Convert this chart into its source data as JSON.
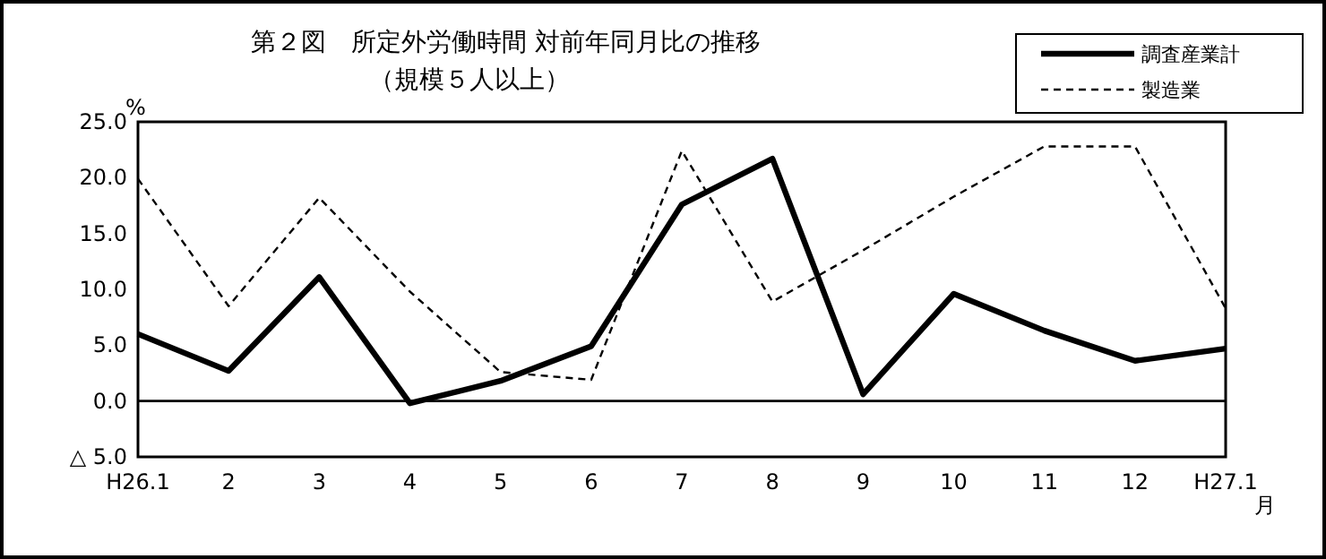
{
  "chart_data": {
    "type": "line",
    "title": "第２図　所定外労働時間 対前年同月比の推移",
    "subtitle": "（規模５人以上）",
    "ylabel": "%",
    "xlabel": "月",
    "categories": [
      "H26.1",
      "2",
      "3",
      "4",
      "5",
      "6",
      "7",
      "8",
      "9",
      "10",
      "11",
      "12",
      "H27.1"
    ],
    "series": [
      {
        "name": "調査産業計",
        "color": "#000000",
        "line_style": "solid",
        "values": [
          6.0,
          2.7,
          11.1,
          -0.2,
          1.8,
          4.9,
          17.6,
          21.7,
          0.6,
          9.6,
          6.3,
          3.6,
          4.7
        ]
      },
      {
        "name": "製造業",
        "color": "#000000",
        "line_style": "dashed",
        "values": [
          19.9,
          8.5,
          18.2,
          9.8,
          2.6,
          1.9,
          22.4,
          8.9,
          13.5,
          18.3,
          22.8,
          22.8,
          8.3
        ]
      }
    ],
    "ylim": [
      -5,
      25
    ],
    "yticks": [
      {
        "value": -5,
        "label": "△ 5.0"
      },
      {
        "value": 0,
        "label": "0.0"
      },
      {
        "value": 5,
        "label": "5.0"
      },
      {
        "value": 10,
        "label": "10.0"
      },
      {
        "value": 15,
        "label": "15.0"
      },
      {
        "value": 20,
        "label": "20.0"
      },
      {
        "value": 25,
        "label": "25.0"
      }
    ],
    "ref_lines": [
      {
        "axis": "y",
        "value": 0,
        "color": "#000000"
      }
    ],
    "legend": "top right",
    "marker": "none"
  }
}
